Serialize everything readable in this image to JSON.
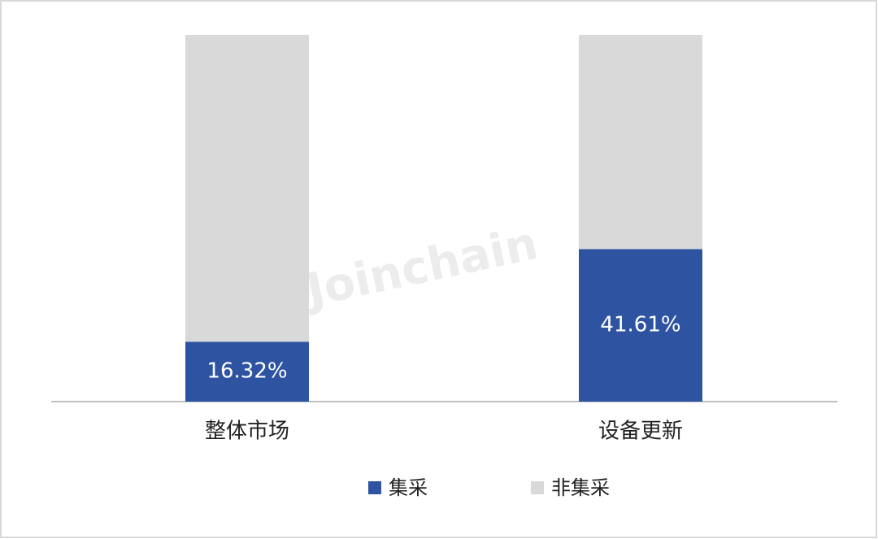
{
  "chart_data": {
    "type": "stacked_bar",
    "categories": [
      "整体市场",
      "设备更新"
    ],
    "series": [
      {
        "name": "集采",
        "color": "#2e54a1",
        "values": [
          16.32,
          41.61
        ],
        "value_labels": [
          "16.32%",
          "41.61%"
        ]
      },
      {
        "name": "非集采",
        "color": "#d9d9d9",
        "values": [
          83.68,
          58.39
        ]
      }
    ],
    "ylim": [
      0,
      100
    ],
    "watermark": "Joinchain"
  }
}
